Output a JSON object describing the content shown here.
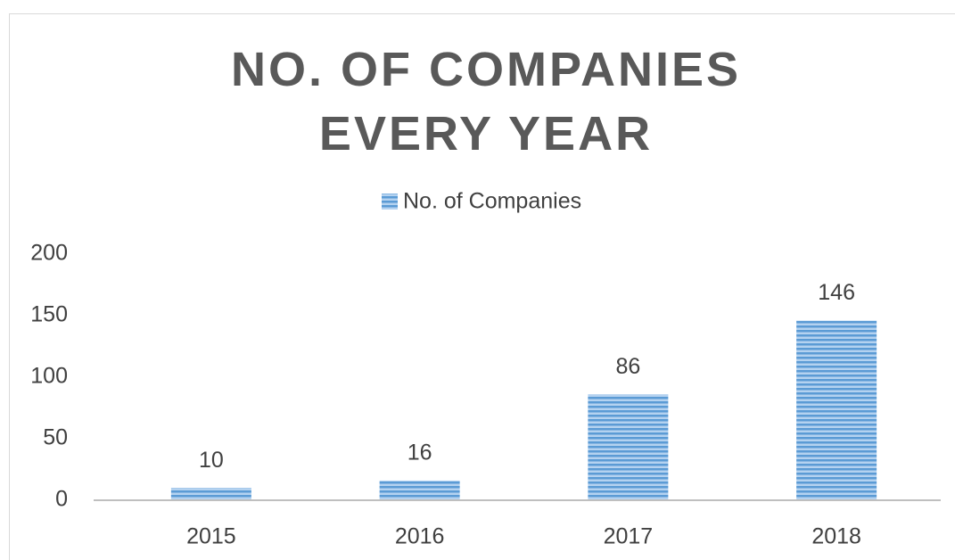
{
  "chart_data": {
    "type": "bar",
    "title": "NO. OF COMPANIES EVERY YEAR",
    "categories": [
      "2015",
      "2016",
      "2017",
      "2018"
    ],
    "series": [
      {
        "name": "No. of Companies",
        "color": "#5b9bd5",
        "values": [
          10,
          16,
          86,
          146
        ]
      }
    ],
    "ylim": [
      0,
      200
    ],
    "yticks": [
      0,
      50,
      100,
      150,
      200
    ],
    "grid": false,
    "legend": "top"
  }
}
